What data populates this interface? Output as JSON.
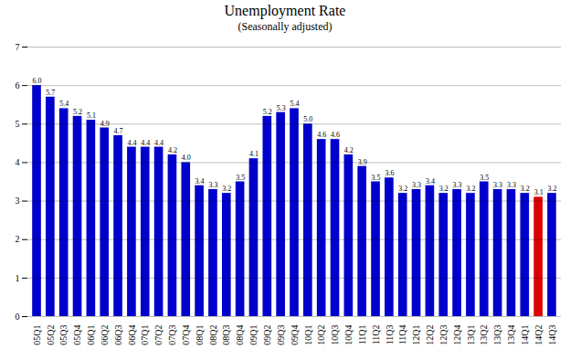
{
  "chart_data": {
    "type": "bar",
    "title": "Unemployment Rate",
    "subtitle": "(Seasonally adjusted)",
    "categories": [
      "05Q1",
      "05Q2",
      "05Q3",
      "05Q4",
      "06Q1",
      "06Q2",
      "06Q3",
      "06Q4",
      "07Q1",
      "07Q2",
      "07Q3",
      "07Q4",
      "08Q1",
      "08Q2",
      "08Q3",
      "08Q4",
      "09Q1",
      "09Q2",
      "09Q3",
      "09Q4",
      "10Q1",
      "10Q2",
      "10Q3",
      "10Q4",
      "11Q1",
      "11Q2",
      "11Q3",
      "11Q4",
      "12Q1",
      "12Q2",
      "12Q3",
      "12Q4",
      "13Q1",
      "13Q2",
      "13Q3",
      "13Q4",
      "14Q1",
      "14Q2",
      "14Q3"
    ],
    "values": [
      6.0,
      5.7,
      5.4,
      5.2,
      5.1,
      4.9,
      4.7,
      4.4,
      4.4,
      4.4,
      4.2,
      4.0,
      3.4,
      3.3,
      3.2,
      3.5,
      4.1,
      5.2,
      5.3,
      5.4,
      5.0,
      4.6,
      4.6,
      4.2,
      3.9,
      3.5,
      3.6,
      3.2,
      3.3,
      3.4,
      3.2,
      3.3,
      3.2,
      3.5,
      3.3,
      3.3,
      3.2,
      3.1,
      3.2
    ],
    "value_labels": [
      "6.0",
      "5.7",
      "5.4",
      "5.2",
      "5.1",
      "4.9",
      "4.7",
      "4.4",
      "4.4",
      "4.4",
      "4.2",
      "4.0",
      "3.4",
      "3.3",
      "3.2",
      "3.5",
      "4.1",
      "5.2",
      "5.3",
      "5.4",
      "5.0",
      "4.6",
      "4.6",
      "4.2",
      "3.9",
      "3.5",
      "3.6",
      "3.2",
      "3.3",
      "3.4",
      "3.2",
      "3.3",
      "3.2",
      "3.5",
      "3.3",
      "3.3",
      "3.2",
      "3.1",
      "3.2"
    ],
    "colors": [
      "#0000CC",
      "#0000CC",
      "#0000CC",
      "#0000CC",
      "#0000CC",
      "#0000CC",
      "#0000CC",
      "#0000CC",
      "#0000CC",
      "#0000CC",
      "#0000CC",
      "#0000CC",
      "#0000CC",
      "#0000CC",
      "#0000CC",
      "#0000CC",
      "#0000CC",
      "#0000CC",
      "#0000CC",
      "#0000CC",
      "#0000CC",
      "#0000CC",
      "#0000CC",
      "#0000CC",
      "#0000CC",
      "#0000CC",
      "#0000CC",
      "#0000CC",
      "#0000CC",
      "#0000CC",
      "#0000CC",
      "#0000CC",
      "#0000CC",
      "#0000CC",
      "#0000CC",
      "#0000CC",
      "#0000CC",
      "#DD0000",
      "#0000CC"
    ],
    "ylim": [
      0,
      7
    ],
    "yticks": [
      0,
      1,
      2,
      3,
      4,
      5,
      6,
      7
    ],
    "grid": true,
    "data_labels": true
  }
}
